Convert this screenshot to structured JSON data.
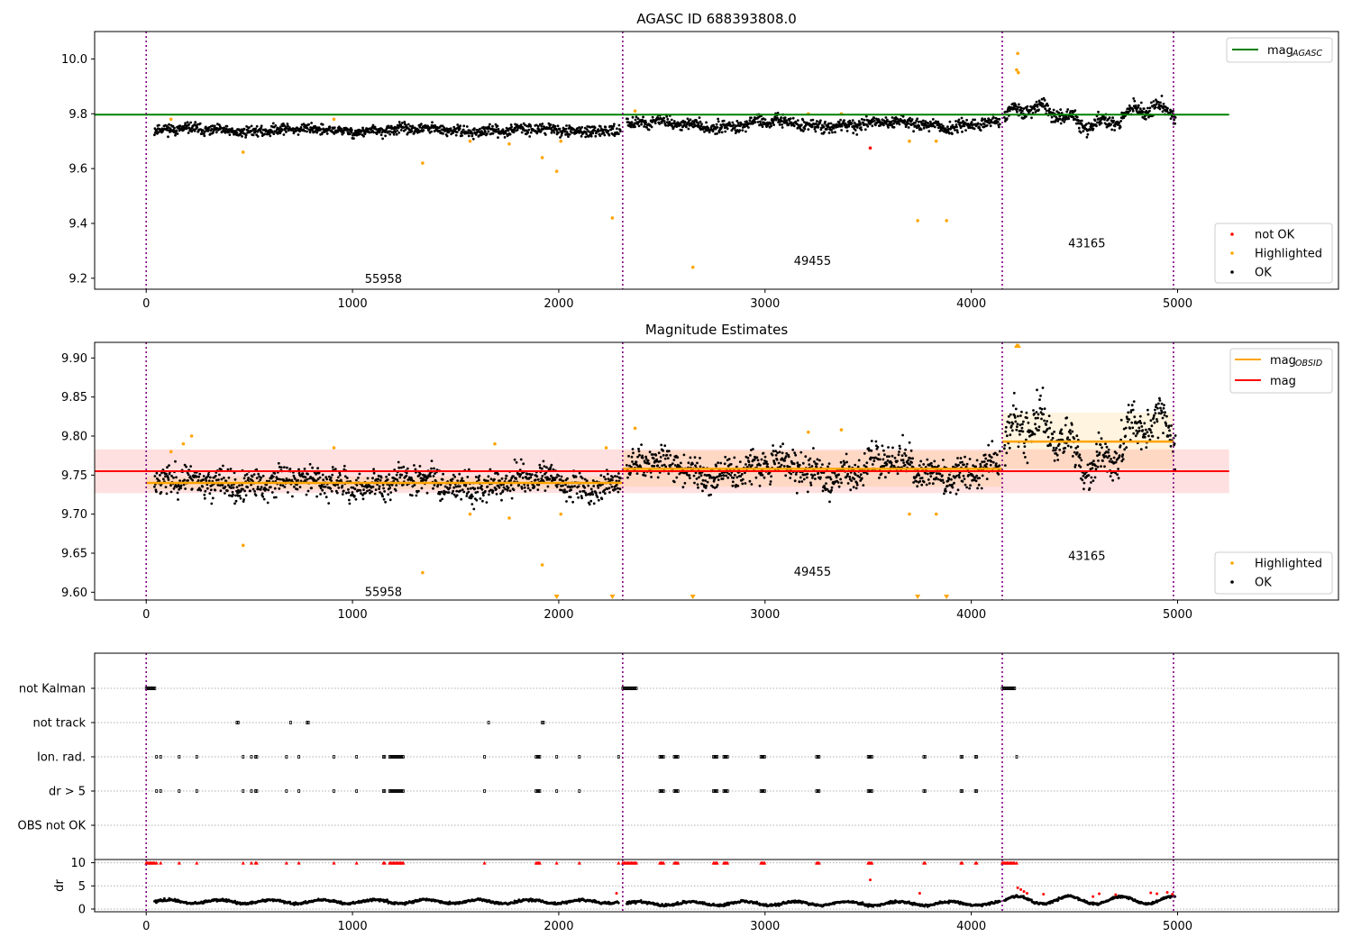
{
  "colors": {
    "ok": "#000000",
    "not_ok": "#ff0000",
    "highlighted": "#ffa500",
    "mag_agasc": "#008000",
    "mag_obsid": "#ffa500",
    "mag": "#ff0000",
    "obs_boundary": "#800080"
  },
  "chart_data": [
    {
      "type": "scatter",
      "title": "AGASC ID 688393808.0",
      "xlim": [
        -250,
        5780
      ],
      "ylim": [
        9.16,
        10.1
      ],
      "xticks": [
        0,
        1000,
        2000,
        3000,
        4000,
        5000
      ],
      "yticks": [
        9.2,
        9.4,
        9.6,
        9.8,
        10.0
      ],
      "ytick_labels": [
        "9.2",
        "9.4",
        "9.6",
        "9.8",
        "10.0"
      ],
      "obs_boundaries": [
        0,
        2310,
        4150,
        4980
      ],
      "obsid_labels": [
        {
          "text": "55958",
          "x": 1150,
          "y": 9.2
        },
        {
          "text": "49455",
          "x": 3230,
          "y": 9.265
        },
        {
          "text": "43165",
          "x": 4560,
          "y": 9.33
        }
      ],
      "mag_agasc": 9.797,
      "mag_agasc_x_range": [
        -250,
        5250
      ],
      "segment_levels": [
        {
          "x0": 40,
          "x1": 2300,
          "level": 9.74,
          "spread": 0.018,
          "wave": 0.006
        },
        {
          "x0": 2330,
          "x1": 4140,
          "level": 9.762,
          "spread": 0.02,
          "wave": 0.01
        },
        {
          "x0": 4160,
          "x1": 4990,
          "level": 9.79,
          "spread": 0.025,
          "wave": 0.03
        }
      ],
      "highlighted_points": [
        [
          120,
          9.78
        ],
        [
          470,
          9.66
        ],
        [
          910,
          9.78
        ],
        [
          1340,
          9.62
        ],
        [
          1570,
          9.7
        ],
        [
          1760,
          9.69
        ],
        [
          1920,
          9.64
        ],
        [
          1990,
          9.59
        ],
        [
          2010,
          9.7
        ],
        [
          2260,
          9.42
        ],
        [
          2370,
          9.81
        ],
        [
          2650,
          9.24
        ],
        [
          3210,
          9.8
        ],
        [
          3370,
          9.8
        ],
        [
          3700,
          9.7
        ],
        [
          3740,
          9.41
        ],
        [
          3830,
          9.7
        ],
        [
          3880,
          9.41
        ],
        [
          4220,
          9.96
        ],
        [
          4225,
          10.02
        ],
        [
          4228,
          9.95
        ]
      ],
      "not_ok_points": [
        [
          3510,
          9.675
        ]
      ],
      "legend_top": [
        {
          "label_base": "mag",
          "label_sub": "AGASC",
          "color_key": "mag_agasc"
        }
      ],
      "legend_bottom": [
        {
          "label": "not OK",
          "color_key": "not_ok"
        },
        {
          "label": "Highlighted",
          "color_key": "highlighted"
        },
        {
          "label": "OK",
          "color_key": "ok"
        }
      ]
    },
    {
      "type": "scatter",
      "title": "Magnitude Estimates",
      "xlim": [
        -250,
        5780
      ],
      "ylim": [
        9.59,
        9.92
      ],
      "xticks": [
        0,
        1000,
        2000,
        3000,
        4000,
        5000
      ],
      "yticks": [
        9.6,
        9.65,
        9.7,
        9.75,
        9.8,
        9.85,
        9.9
      ],
      "ytick_labels": [
        "9.60",
        "9.65",
        "9.70",
        "9.75",
        "9.80",
        "9.85",
        "9.90"
      ],
      "obs_boundaries": [
        0,
        2310,
        4150,
        4980
      ],
      "obsid_labels": [
        {
          "text": "55958",
          "x": 1150,
          "y": 9.601
        },
        {
          "text": "49455",
          "x": 3230,
          "y": 9.627
        },
        {
          "text": "43165",
          "x": 4560,
          "y": 9.647
        }
      ],
      "mag": 9.755,
      "mag_band": [
        9.727,
        9.783
      ],
      "mag_x_range": [
        -250,
        5250
      ],
      "mag_obsid": [
        {
          "x0": 0,
          "x1": 2310,
          "mag": 9.74,
          "band": [
            9.732,
            9.748
          ]
        },
        {
          "x0": 2310,
          "x1": 4150,
          "mag": 9.758,
          "band": [
            9.735,
            9.781
          ]
        },
        {
          "x0": 4150,
          "x1": 4980,
          "mag": 9.793,
          "band": [
            9.758,
            9.83
          ]
        }
      ],
      "segment_levels": [
        {
          "x0": 40,
          "x1": 2300,
          "level": 9.74,
          "spread": 0.018,
          "wave": 0.006
        },
        {
          "x0": 2330,
          "x1": 4140,
          "level": 9.758,
          "spread": 0.02,
          "wave": 0.01
        },
        {
          "x0": 4160,
          "x1": 4990,
          "level": 9.79,
          "spread": 0.025,
          "wave": 0.03
        }
      ],
      "highlighted_points": [
        [
          120,
          9.78
        ],
        [
          180,
          9.79
        ],
        [
          220,
          9.8
        ],
        [
          470,
          9.66
        ],
        [
          910,
          9.785
        ],
        [
          1340,
          9.625
        ],
        [
          1570,
          9.7
        ],
        [
          1690,
          9.79
        ],
        [
          1760,
          9.695
        ],
        [
          1920,
          9.635
        ],
        [
          2010,
          9.7
        ],
        [
          2230,
          9.785
        ],
        [
          2370,
          9.81
        ],
        [
          3210,
          9.805
        ],
        [
          3370,
          9.808
        ],
        [
          3700,
          9.7
        ],
        [
          3830,
          9.7
        ]
      ],
      "clipped_low_points": [
        1990,
        2260,
        2650,
        3740,
        3880
      ],
      "clipped_high_points": [
        4220,
        4228
      ],
      "legend_top": [
        {
          "label_base": "mag",
          "label_sub": "OBSID",
          "color_key": "mag_obsid"
        },
        {
          "label_base": "mag",
          "label_sub": "",
          "color_key": "mag"
        }
      ],
      "legend_bottom": [
        {
          "label": "Highlighted",
          "color_key": "highlighted"
        },
        {
          "label": "OK",
          "color_key": "ok"
        }
      ]
    },
    {
      "type": "scatter",
      "title": "",
      "xlim": [
        -250,
        5780
      ],
      "xticks": [
        0,
        1000,
        2000,
        3000,
        4000,
        5000
      ],
      "obs_boundaries": [
        0,
        2310,
        4150,
        4980
      ],
      "flag_rows": [
        "not Kalman",
        "not track",
        "Ion. rad.",
        "dr > 5",
        "OBS not OK"
      ],
      "flag_events": {
        "not Kalman": [
          [
            0,
            45
          ],
          [
            2310,
            2380
          ],
          [
            4150,
            4210
          ]
        ],
        "not track": [
          [
            440,
            450
          ],
          [
            700,
            705
          ],
          [
            780,
            790
          ],
          [
            1660,
            1665
          ],
          [
            1920,
            1930
          ]
        ],
        "Ion. rad.": [
          [
            50,
            55
          ],
          [
            70,
            75
          ],
          [
            160,
            165
          ],
          [
            245,
            250
          ],
          [
            470,
            475
          ],
          [
            510,
            515
          ],
          [
            530,
            540
          ],
          [
            680,
            685
          ],
          [
            740,
            745
          ],
          [
            910,
            915
          ],
          [
            1020,
            1025
          ],
          [
            1150,
            1160
          ],
          [
            1180,
            1250
          ],
          [
            1640,
            1645
          ],
          [
            1890,
            1910
          ],
          [
            1990,
            1995
          ],
          [
            2100,
            2105
          ],
          [
            2290,
            2295
          ],
          [
            2490,
            2510
          ],
          [
            2560,
            2580
          ],
          [
            2750,
            2770
          ],
          [
            2800,
            2820
          ],
          [
            2980,
            3000
          ],
          [
            3250,
            3265
          ],
          [
            3500,
            3520
          ],
          [
            3770,
            3780
          ],
          [
            3950,
            3960
          ],
          [
            4020,
            4030
          ],
          [
            4220,
            4225
          ]
        ],
        "dr > 5": [
          [
            50,
            55
          ],
          [
            70,
            75
          ],
          [
            160,
            165
          ],
          [
            245,
            250
          ],
          [
            470,
            475
          ],
          [
            510,
            515
          ],
          [
            530,
            540
          ],
          [
            680,
            685
          ],
          [
            740,
            745
          ],
          [
            910,
            915
          ],
          [
            1020,
            1025
          ],
          [
            1150,
            1160
          ],
          [
            1180,
            1250
          ],
          [
            1640,
            1645
          ],
          [
            1890,
            1910
          ],
          [
            1990,
            1995
          ],
          [
            2100,
            2105
          ],
          [
            2490,
            2510
          ],
          [
            2560,
            2580
          ],
          [
            2750,
            2770
          ],
          [
            2800,
            2820
          ],
          [
            2980,
            3000
          ],
          [
            3250,
            3265
          ],
          [
            3500,
            3520
          ],
          [
            3770,
            3780
          ],
          [
            3950,
            3960
          ],
          [
            4020,
            4030
          ]
        ],
        "OBS not OK": []
      },
      "dr": {
        "ylabel": "dr",
        "ylim": [
          0,
          10.5
        ],
        "yticks": [
          0,
          5,
          10
        ],
        "ytick_labels": [
          "0",
          "5",
          "10"
        ],
        "segments": [
          {
            "x0": 40,
            "x1": 2290,
            "level": 1.6,
            "wave": 0.4
          },
          {
            "x0": 2330,
            "x1": 4140,
            "level": 1.2,
            "wave": 0.4
          },
          {
            "x0": 4160,
            "x1": 4990,
            "level": 1.9,
            "wave": 0.8
          }
        ],
        "red_points": [
          [
            2280,
            3.4
          ],
          [
            3510,
            6.3
          ],
          [
            3750,
            3.4
          ],
          [
            4225,
            4.6
          ],
          [
            4240,
            4.2
          ],
          [
            4255,
            3.8
          ],
          [
            4270,
            3.4
          ],
          [
            4350,
            3.2
          ],
          [
            4590,
            2.7
          ],
          [
            4620,
            3.3
          ],
          [
            4700,
            3.1
          ],
          [
            4870,
            3.5
          ],
          [
            4900,
            3.3
          ],
          [
            4950,
            3.6
          ],
          [
            4975,
            3.2
          ]
        ],
        "clipped_events": "Ion. rad."
      }
    }
  ]
}
